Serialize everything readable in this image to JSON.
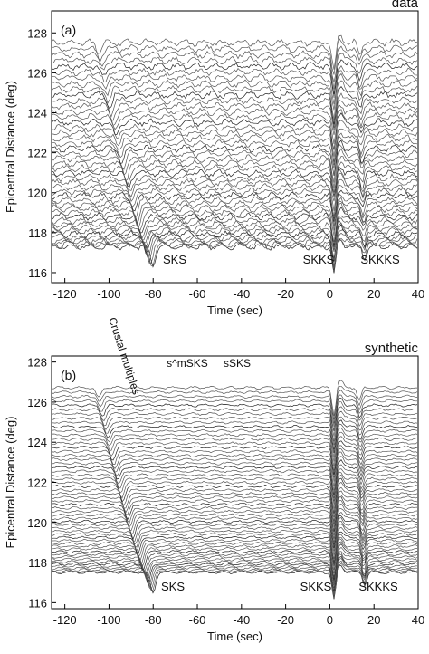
{
  "chart_data": [
    {
      "type": "line",
      "title": "data",
      "panel_label": "(a)",
      "x_label": "Time (sec)",
      "y_label": "Epicentral Distance (deg)",
      "xlim": [
        -126,
        40
      ],
      "ylim": [
        115.5,
        129.1
      ],
      "xticks": [
        -120,
        -100,
        -80,
        -60,
        -40,
        -20,
        0,
        20,
        40
      ],
      "yticks": [
        116,
        118,
        120,
        122,
        124,
        126,
        128
      ],
      "annotations": [
        "SKS",
        "SKKS",
        "SKKKS"
      ]
    },
    {
      "type": "line",
      "title": "synthetic",
      "panel_label": "(b)",
      "x_label": "Time (sec)",
      "y_label": "Epicentral Distance (deg)",
      "xlim": [
        -126,
        40
      ],
      "ylim": [
        115.7,
        128.3
      ],
      "xticks": [
        -120,
        -100,
        -80,
        -60,
        -40,
        -20,
        0,
        20,
        40
      ],
      "yticks": [
        116,
        118,
        120,
        122,
        124,
        126,
        128
      ],
      "annotations": [
        "SKS",
        "SKKS",
        "SKKKS",
        "Crustal multiples",
        "s^mSKS",
        "sSKS"
      ]
    }
  ]
}
